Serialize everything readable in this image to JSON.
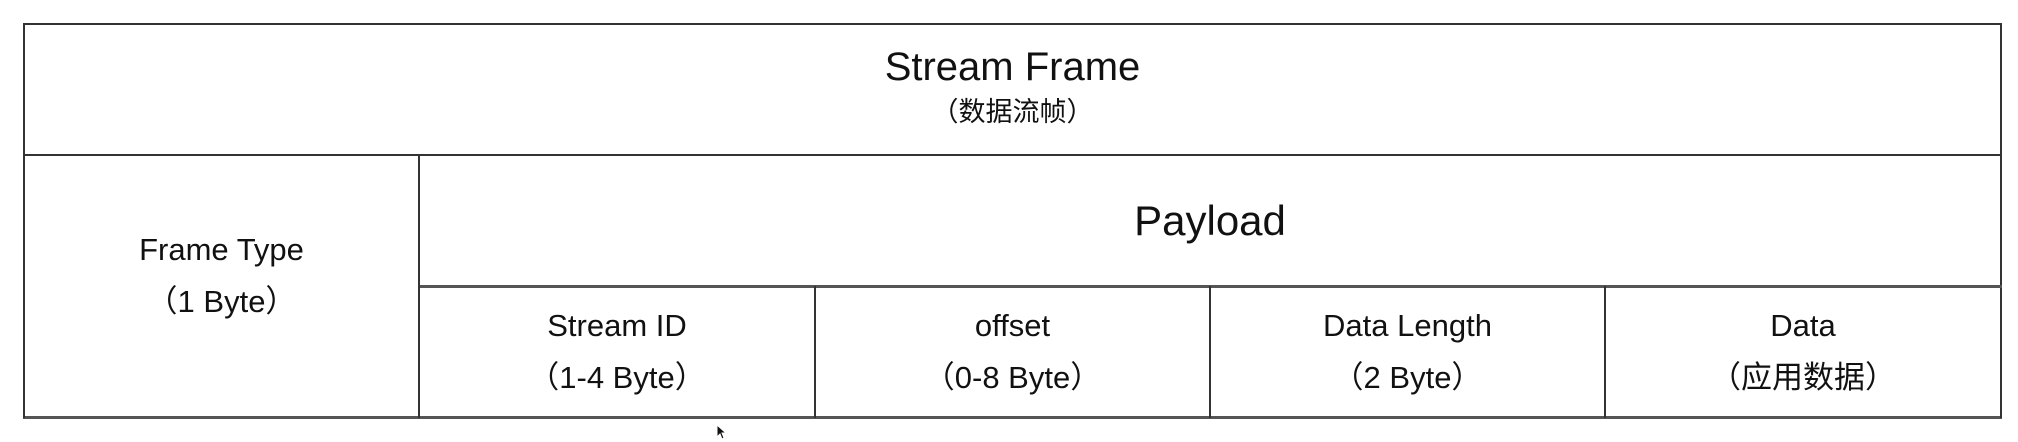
{
  "header": {
    "title": "Stream Frame",
    "subtitle": "（数据流帧）"
  },
  "frame_type": {
    "label": "Frame Type",
    "size": "（1 Byte）"
  },
  "payload": {
    "label": "Payload",
    "fields": [
      {
        "label": "Stream ID",
        "size": "（1-4 Byte）"
      },
      {
        "label": "offset",
        "size": "（0-8 Byte）"
      },
      {
        "label": "Data Length",
        "size": "（2 Byte）"
      },
      {
        "label": "Data",
        "size": "（应用数据）"
      }
    ]
  }
}
